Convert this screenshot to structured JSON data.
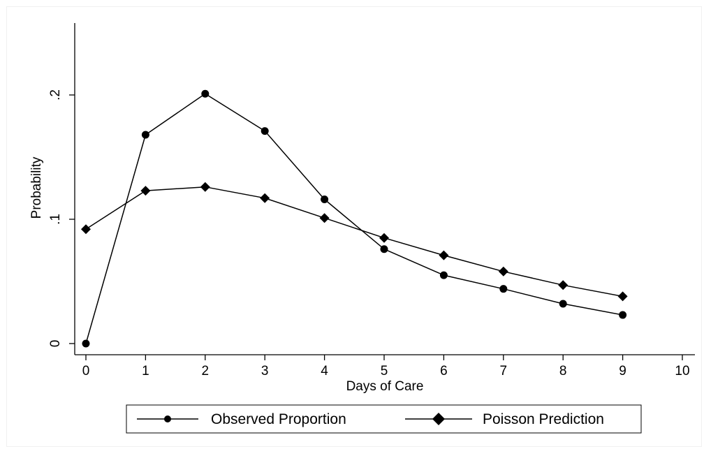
{
  "chart_data": {
    "type": "line",
    "title": "",
    "xlabel": "Days of Care",
    "ylabel": "Probability",
    "xlim": [
      0,
      10
    ],
    "ylim": [
      0,
      0.26
    ],
    "x_ticks": [
      0,
      1,
      2,
      3,
      4,
      5,
      6,
      7,
      8,
      9,
      10
    ],
    "x_tick_labels": [
      "0",
      "1",
      "2",
      "3",
      "4",
      "5",
      "6",
      "7",
      "8",
      "9",
      "10"
    ],
    "y_ticks": [
      0,
      0.1,
      0.2
    ],
    "y_tick_labels": [
      "0",
      ".1",
      ".2"
    ],
    "grid": false,
    "legend_position": "bottom",
    "series": [
      {
        "name": "Observed Proportion",
        "marker": "circle",
        "color": "#000000",
        "x": [
          0,
          1,
          2,
          3,
          4,
          5,
          6,
          7,
          8,
          9
        ],
        "values": [
          0.0,
          0.168,
          0.201,
          0.171,
          0.116,
          0.076,
          0.055,
          0.044,
          0.032,
          0.023
        ]
      },
      {
        "name": "Poisson Prediction",
        "marker": "diamond",
        "color": "#000000",
        "x": [
          0,
          1,
          2,
          3,
          4,
          5,
          6,
          7,
          8,
          9
        ],
        "values": [
          0.092,
          0.123,
          0.126,
          0.117,
          0.101,
          0.085,
          0.071,
          0.058,
          0.047,
          0.038
        ]
      }
    ]
  }
}
